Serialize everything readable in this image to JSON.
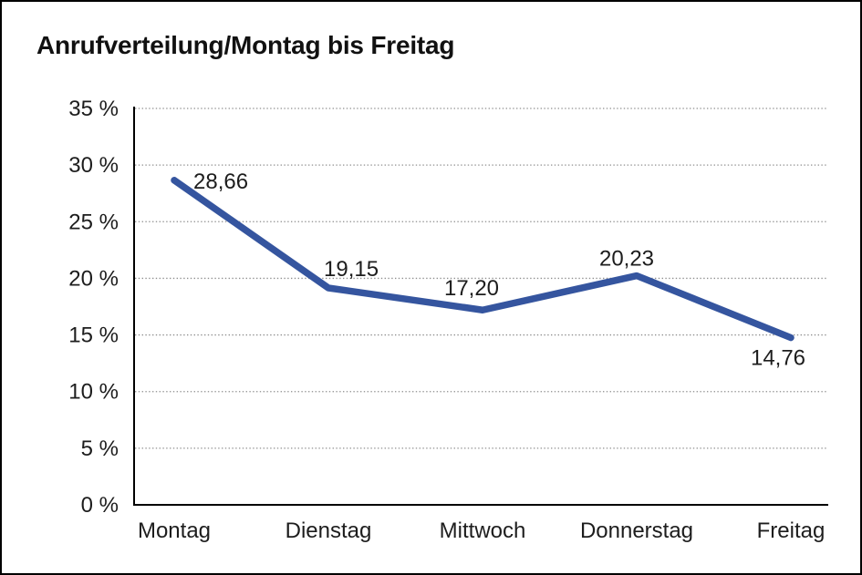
{
  "title": "Anrufverteilung/Montag bis Freitag",
  "colors": {
    "line": "#35559F",
    "text": "#1d1d1d",
    "axis": "#000000",
    "grid": "#8f8f8f",
    "background": "#ffffff",
    "border": "#000000"
  },
  "chart_data": {
    "type": "line",
    "title": "Anrufverteilung/Montag bis Freitag",
    "categories": [
      "Montag",
      "Dienstag",
      "Mittwoch",
      "Donnerstag",
      "Freitag"
    ],
    "series": [
      {
        "values": [
          28.66,
          19.15,
          17.2,
          20.23,
          14.76
        ],
        "point_labels": [
          "28,66",
          "19,15",
          "17,20",
          "20,23",
          "14,76"
        ],
        "color": "#35559F"
      }
    ],
    "xlabel": "",
    "ylabel": "",
    "y_axis": {
      "min": 0,
      "max": 35,
      "step": 5,
      "unit": "%",
      "tick_labels": [
        "0 %",
        "5 %",
        "10 %",
        "15 %",
        "20 %",
        "25 %",
        "30 %",
        "35 %"
      ]
    },
    "grid": {
      "horizontal": true,
      "vertical": false,
      "style": "dotted"
    },
    "legend": "none",
    "decimal_separator": ","
  }
}
